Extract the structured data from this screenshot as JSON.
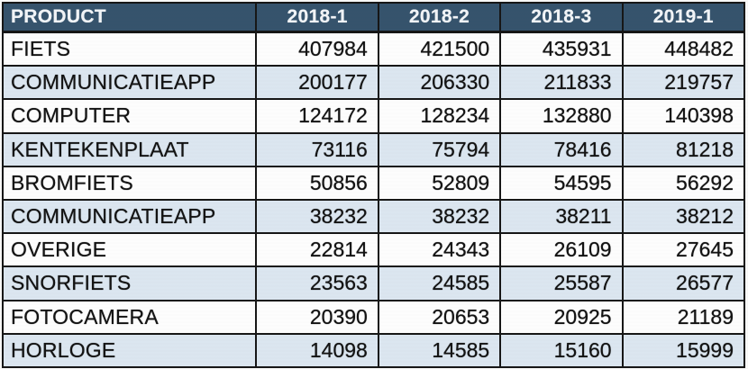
{
  "table": {
    "columns": [
      "PRODUCT",
      "2018-1",
      "2018-2",
      "2018-3",
      "2019-1"
    ],
    "rows": [
      {
        "product": "FIETS",
        "values": [
          "407984",
          "421500",
          "435931",
          "448482"
        ],
        "shaded": false
      },
      {
        "product": "COMMUNICATIEAPP",
        "values": [
          "200177",
          "206330",
          "211833",
          "219757"
        ],
        "shaded": true
      },
      {
        "product": "COMPUTER",
        "values": [
          "124172",
          "128234",
          "132880",
          "140398"
        ],
        "shaded": false
      },
      {
        "product": "KENTEKENPLAAT",
        "values": [
          "73116",
          "75794",
          "78416",
          "81218"
        ],
        "shaded": true
      },
      {
        "product": "BROMFIETS",
        "values": [
          "50856",
          "52809",
          "54595",
          "56292"
        ],
        "shaded": false
      },
      {
        "product": "COMMUNICATIEAPP",
        "values": [
          "38232",
          "38232",
          "38211",
          "38212"
        ],
        "shaded": true
      },
      {
        "product": "OVERIGE",
        "values": [
          "22814",
          "24343",
          "26109",
          "27645"
        ],
        "shaded": false
      },
      {
        "product": "SNORFIETS",
        "values": [
          "23563",
          "24585",
          "25587",
          "26577"
        ],
        "shaded": true
      },
      {
        "product": "FOTOCAMERA",
        "values": [
          "20390",
          "20653",
          "20925",
          "21189"
        ],
        "shaded": false
      },
      {
        "product": "HORLOGE",
        "values": [
          "14098",
          "14585",
          "15160",
          "15999"
        ],
        "shaded": true
      }
    ]
  },
  "colors": {
    "header_bg": "#35536c",
    "header_text": "#f2f5f8",
    "row_shade": "#dce7f1",
    "row_plain": "#fefefe",
    "border": "#161616"
  }
}
